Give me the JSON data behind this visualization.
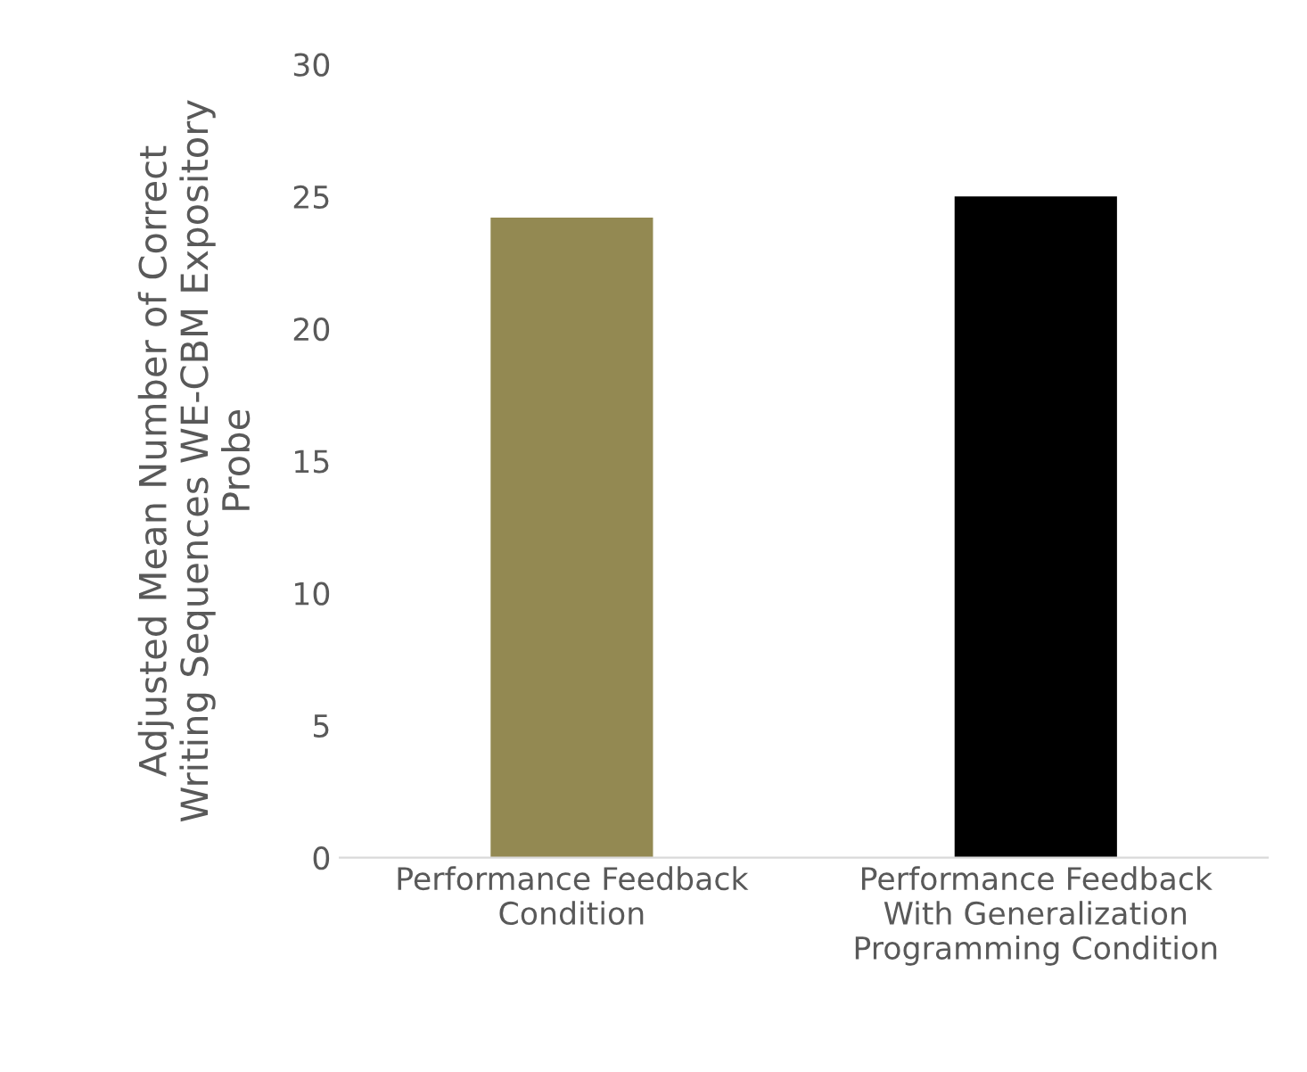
{
  "chart_data": {
    "type": "bar",
    "ylabel": "Adjusted Mean Number of Correct\nWriting Sequences WE-CBM Expository\nProbe",
    "categories": [
      "Performance Feedback\nCondition",
      "Performance Feedback\nWith Generalization\nProgramming Condition"
    ],
    "values": [
      24.2,
      25.0
    ],
    "colors": [
      "#938952",
      "#000000"
    ],
    "ylim": [
      0,
      30
    ],
    "yticks": [
      0,
      5,
      10,
      15,
      20,
      25,
      30
    ],
    "grid": false,
    "legend": false
  }
}
